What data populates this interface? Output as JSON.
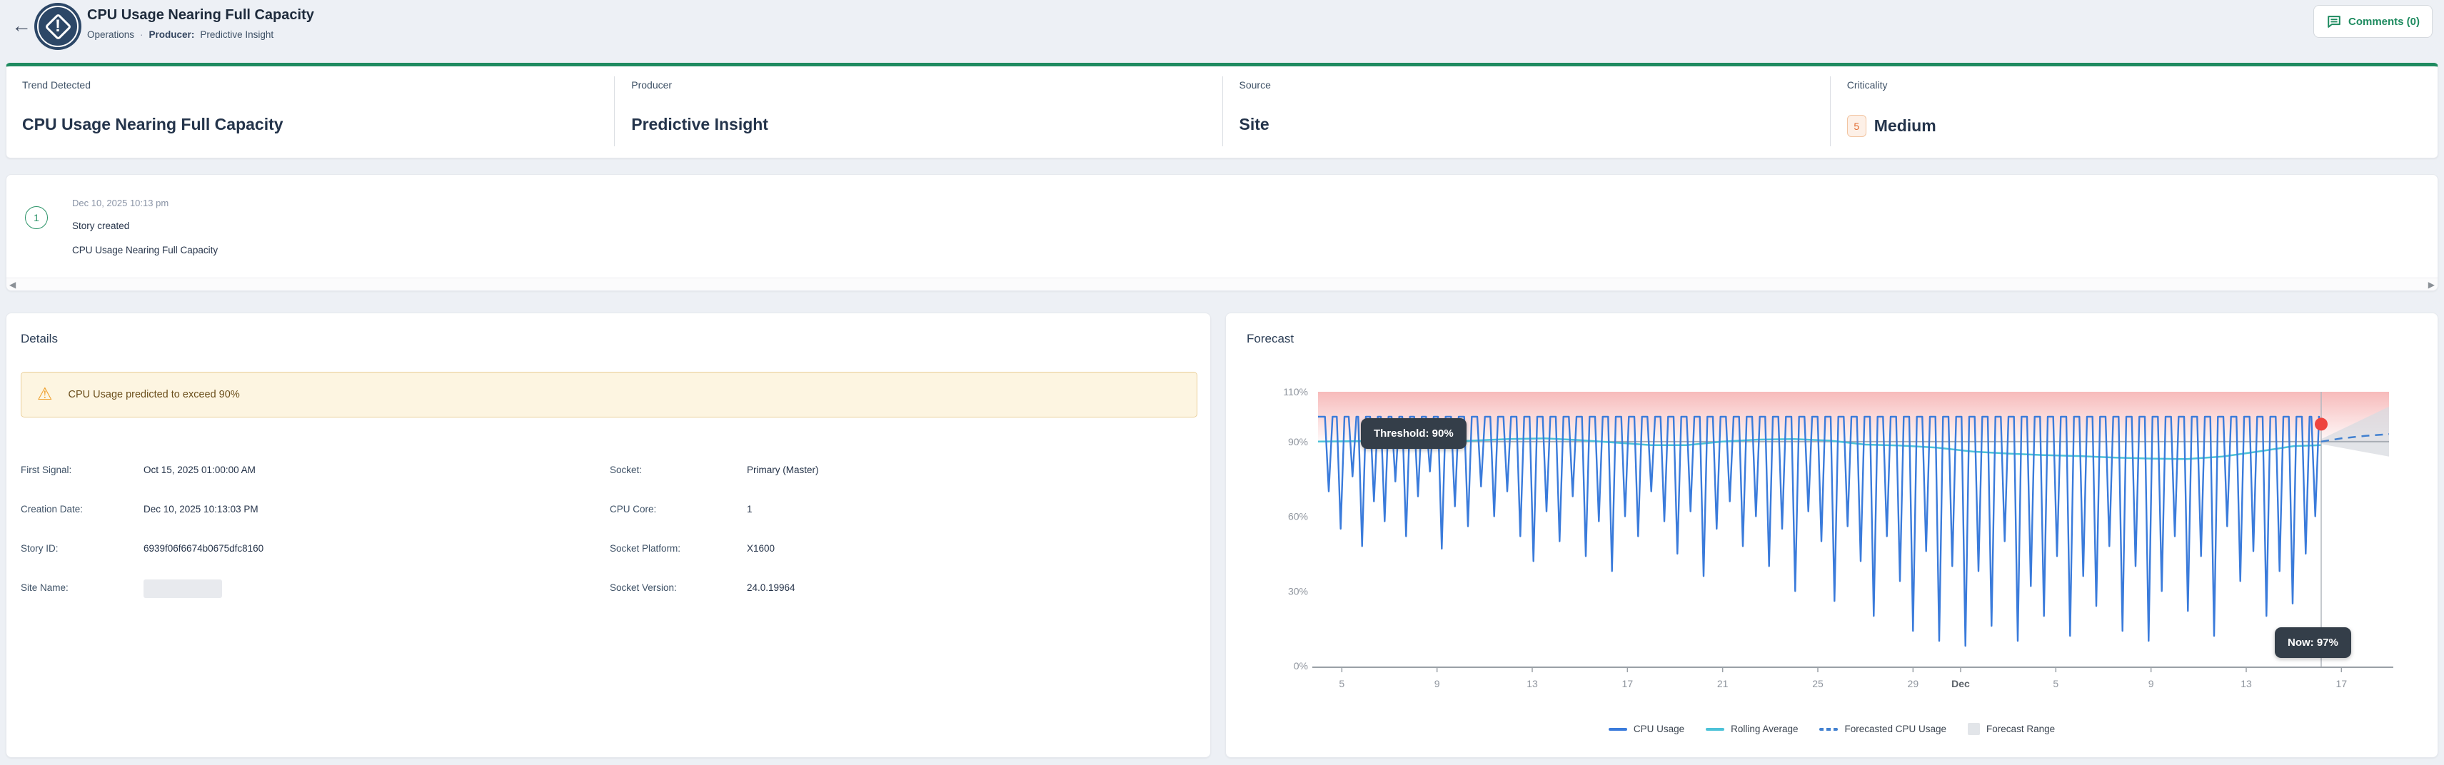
{
  "header": {
    "title": "CPU Usage Nearing Full Capacity",
    "breadcrumb": "Operations",
    "separator": "·",
    "producer_label": "Producer:",
    "producer_value": "Predictive Insight",
    "comments_label": "Comments (0)",
    "back_glyph": "←"
  },
  "summary": {
    "columns": [
      {
        "label": "Trend Detected",
        "value": "CPU Usage Nearing Full Capacity"
      },
      {
        "label": "Producer",
        "value": "Predictive Insight"
      },
      {
        "label": "Source",
        "value": "Site"
      },
      {
        "label": "Criticality",
        "badge": "5",
        "value": "Medium"
      }
    ]
  },
  "timeline": {
    "events": [
      {
        "number": "1",
        "timestamp": "Dec 10, 2025 10:13 pm",
        "title": "Story created",
        "description": "CPU Usage Nearing Full Capacity"
      }
    ],
    "scroll_left_glyph": "◀",
    "scroll_right_glyph": "▶"
  },
  "details": {
    "heading": "Details",
    "warning": "CPU Usage predicted to exceed 90%",
    "warning_icon_glyph": "⚠",
    "fields_left": [
      {
        "label": "First Signal:",
        "value": "Oct 15, 2025 01:00:00 AM"
      },
      {
        "label": "Creation Date:",
        "value": "Dec 10, 2025 10:13:03 PM"
      },
      {
        "label": "Story ID:",
        "value": "6939f06f6674b0675dfc8160"
      },
      {
        "label": "Site Name:",
        "value": "",
        "redacted": true
      }
    ],
    "fields_right": [
      {
        "label": "Socket:",
        "value": "Primary (Master)"
      },
      {
        "label": "CPU Core:",
        "value": "1"
      },
      {
        "label": "Socket Platform:",
        "value": "X1600"
      },
      {
        "label": "Socket Version:",
        "value": "24.0.19964"
      }
    ]
  },
  "forecast": {
    "heading": "Forecast"
  },
  "colors": {
    "accent_green": "#1f8b60",
    "navy_icon": "#2c4767",
    "criticality_orange": "#e06c33",
    "warning_bg": "#fdf5e1",
    "warning_border": "#e9cf9a",
    "page_bg": "#edf0f5"
  },
  "chart_data": {
    "type": "line",
    "title": "Forecast",
    "x_domain_days": [
      0,
      45
    ],
    "x_note": "day 0 = Nov 4 2025, day 27 = Dec 1 2025, x ticks are day-of-month",
    "ylim": [
      0,
      110
    ],
    "grid": false,
    "legend_position": "bottom-center",
    "y_ticks": [
      {
        "value": 110,
        "label": "110%"
      },
      {
        "value": 90,
        "label": "90%"
      },
      {
        "value": 60,
        "label": "60%"
      },
      {
        "value": 30,
        "label": "30%"
      },
      {
        "value": 0,
        "label": "0%"
      }
    ],
    "x_ticks": [
      {
        "x": 1,
        "label": "5"
      },
      {
        "x": 5,
        "label": "9"
      },
      {
        "x": 9,
        "label": "13"
      },
      {
        "x": 13,
        "label": "17"
      },
      {
        "x": 17,
        "label": "21"
      },
      {
        "x": 21,
        "label": "25"
      },
      {
        "x": 25,
        "label": "29"
      },
      {
        "x": 27,
        "label": "Dec",
        "bold": true
      },
      {
        "x": 31,
        "label": "5"
      },
      {
        "x": 35,
        "label": "9"
      },
      {
        "x": 39,
        "label": "13"
      },
      {
        "x": 43,
        "label": "17"
      }
    ],
    "threshold": {
      "value": 90,
      "color": "#a8adb4"
    },
    "threshold_region": {
      "from": 90,
      "to": 110,
      "color": "#ef7676"
    },
    "now": {
      "x": 42.15,
      "value": 97,
      "dot_color": "#ee443e",
      "line_color": "#b3b8bf"
    },
    "annotations": {
      "threshold": "Threshold: 90%",
      "now": "Now: 97%"
    },
    "series": [
      {
        "name": "CPU Usage",
        "type": "dips",
        "color": "#3a7bdb",
        "plateau": 100,
        "end_x": 42.15,
        "end_y": 97,
        "dips": [
          [
            0.45,
            70
          ],
          [
            0.95,
            55
          ],
          [
            1.45,
            76
          ],
          [
            1.85,
            48
          ],
          [
            2.35,
            66
          ],
          [
            2.8,
            58
          ],
          [
            3.25,
            74
          ],
          [
            3.7,
            52
          ],
          [
            4.2,
            68
          ],
          [
            4.7,
            78
          ],
          [
            5.2,
            47
          ],
          [
            5.75,
            64
          ],
          [
            6.3,
            56
          ],
          [
            6.85,
            72
          ],
          [
            7.4,
            60
          ],
          [
            7.95,
            70
          ],
          [
            8.5,
            52
          ],
          [
            9.05,
            42
          ],
          [
            9.6,
            62
          ],
          [
            10.15,
            50
          ],
          [
            10.7,
            68
          ],
          [
            11.25,
            44
          ],
          [
            11.8,
            58
          ],
          [
            12.35,
            38
          ],
          [
            12.9,
            60
          ],
          [
            13.45,
            52
          ],
          [
            14.0,
            70
          ],
          [
            14.55,
            58
          ],
          [
            15.1,
            45
          ],
          [
            15.65,
            62
          ],
          [
            16.2,
            36
          ],
          [
            16.75,
            55
          ],
          [
            17.3,
            66
          ],
          [
            17.85,
            48
          ],
          [
            18.4,
            60
          ],
          [
            18.95,
            40
          ],
          [
            19.5,
            55
          ],
          [
            20.05,
            30
          ],
          [
            20.6,
            62
          ],
          [
            21.15,
            50
          ],
          [
            21.7,
            26
          ],
          [
            22.25,
            56
          ],
          [
            22.8,
            42
          ],
          [
            23.35,
            20
          ],
          [
            23.9,
            52
          ],
          [
            24.45,
            34
          ],
          [
            25.0,
            14
          ],
          [
            25.55,
            46
          ],
          [
            26.1,
            10
          ],
          [
            26.65,
            40
          ],
          [
            27.2,
            8
          ],
          [
            27.75,
            38
          ],
          [
            28.3,
            16
          ],
          [
            28.85,
            50
          ],
          [
            29.4,
            10
          ],
          [
            29.95,
            32
          ],
          [
            30.5,
            20
          ],
          [
            31.05,
            44
          ],
          [
            31.6,
            12
          ],
          [
            32.15,
            36
          ],
          [
            32.7,
            24
          ],
          [
            33.25,
            48
          ],
          [
            33.8,
            14
          ],
          [
            34.35,
            40
          ],
          [
            34.9,
            10
          ],
          [
            35.45,
            30
          ],
          [
            36.0,
            52
          ],
          [
            36.55,
            22
          ],
          [
            37.1,
            44
          ],
          [
            37.65,
            12
          ],
          [
            38.2,
            56
          ],
          [
            38.75,
            34
          ],
          [
            39.3,
            46
          ],
          [
            39.85,
            20
          ],
          [
            40.4,
            38
          ],
          [
            40.95,
            25
          ],
          [
            41.5,
            45
          ],
          [
            41.9,
            60
          ]
        ]
      },
      {
        "name": "Rolling Average",
        "type": "line",
        "color": "#4cc2d8",
        "points": [
          [
            0,
            90
          ],
          [
            2,
            90.2
          ],
          [
            4,
            90.4
          ],
          [
            6,
            90.2
          ],
          [
            8,
            91
          ],
          [
            9.5,
            91.3
          ],
          [
            11,
            90.6
          ],
          [
            12.5,
            89.6
          ],
          [
            14,
            88.6
          ],
          [
            15.5,
            88.6
          ],
          [
            17,
            90
          ],
          [
            18.5,
            90.8
          ],
          [
            20,
            91
          ],
          [
            21.5,
            90.4
          ],
          [
            23,
            88.8
          ],
          [
            24.5,
            88.4
          ],
          [
            26,
            87.6
          ],
          [
            27.5,
            86
          ],
          [
            29,
            85.2
          ],
          [
            30.5,
            84.6
          ],
          [
            32,
            84.2
          ],
          [
            33.5,
            83.6
          ],
          [
            35,
            83.2
          ],
          [
            36.5,
            83
          ],
          [
            38,
            84
          ],
          [
            39.5,
            86
          ],
          [
            41,
            88.2
          ],
          [
            42.15,
            88.6
          ]
        ]
      },
      {
        "name": "Forecasted CPU Usage",
        "type": "dashed",
        "color": "#4180d0",
        "points": [
          [
            42.15,
            90
          ],
          [
            43,
            91.3
          ],
          [
            44,
            92.3
          ],
          [
            45,
            93
          ]
        ]
      },
      {
        "name": "Forecast Range",
        "type": "band",
        "color": "#d8dbe0",
        "top": [
          [
            42.15,
            91
          ],
          [
            45,
            104
          ]
        ],
        "bottom": [
          [
            42.15,
            89
          ],
          [
            45,
            84
          ]
        ]
      }
    ],
    "legend": [
      {
        "label": "CPU Usage",
        "marker": "line",
        "color": "#3a7bdb"
      },
      {
        "label": "Rolling Average",
        "marker": "line",
        "color": "#4cc2d8"
      },
      {
        "label": "Forecasted CPU Usage",
        "marker": "dashed",
        "color": "#4180d0"
      },
      {
        "label": "Forecast Range",
        "marker": "square",
        "color": "#e2e5e9"
      }
    ]
  }
}
